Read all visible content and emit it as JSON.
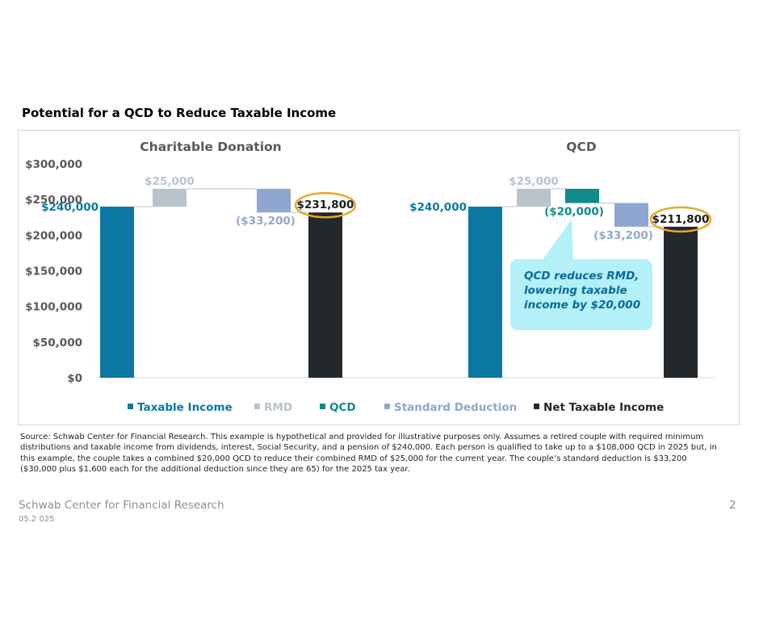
{
  "page": {
    "heading": "Potential for a QCD to Reduce Taxable Income",
    "source": "Source: Schwab Center for Financial Research. This example is hypothetical and provided for illustrative purposes only. Assumes a retired couple with required minimum distributions and taxable income from dividends, interest, Social Security, and a pension of $240,000. Each person is qualified to take up to a $108,000 QCD in 2025 but, in this example, the couple takes a combined $20,000 QCD to reduce their combined RMD of $25,000 for the current year. The couple’s standard deduction is $33,200 ($30,000 plus $1,600 each for the additional deduction since they are 65) for the 2025 tax year.",
    "footer": {
      "org": "Schwab Center for Financial Research",
      "date": "05.2 025",
      "page_number": "2"
    }
  },
  "chart_data": {
    "type": "waterfall",
    "yrange": [
      0,
      300000
    ],
    "yticks": [
      {
        "value": 0,
        "label": "$0"
      },
      {
        "value": 50000,
        "label": "$50,000"
      },
      {
        "value": 100000,
        "label": "$100,000"
      },
      {
        "value": 150000,
        "label": "$150,000"
      },
      {
        "value": 200000,
        "label": "$200,000"
      },
      {
        "value": 250000,
        "label": "$250,000"
      },
      {
        "value": 300000,
        "label": "$300,000"
      }
    ],
    "colors": {
      "Taxable Income": "#0b78a3",
      "RMD": "#b8c3cb",
      "QCD": "#118a89",
      "Standard Deduction": "#8fa7d0",
      "Net Taxable Income": "#23282d"
    },
    "legend": [
      {
        "name": "Taxable Income",
        "label_color": "#0b78a3"
      },
      {
        "name": "RMD",
        "label_color": "#b8c3cb"
      },
      {
        "name": "QCD",
        "label_color": "#118a89"
      },
      {
        "name": "Standard Deduction",
        "label_color": "#8fa7d0"
      },
      {
        "name": "Net Taxable Income",
        "label_color": "#23282d"
      }
    ],
    "groups": [
      {
        "title": "Charitable Donation",
        "steps": [
          {
            "series": "Taxable Income",
            "kind": "total",
            "value": 240000,
            "label": "$240,000",
            "label_color": "#0b78a3",
            "label_pos": "left",
            "highlight": false
          },
          {
            "series": "RMD",
            "kind": "delta",
            "value": 25000,
            "label": "$25,000",
            "label_color": "#b8c3cb",
            "label_pos": "above",
            "highlight": false
          },
          {
            "series": "Standard Deduction",
            "kind": "delta",
            "value": -33200,
            "label": "($33,200)",
            "label_color": "#8fa7d0",
            "label_pos": "below",
            "highlight": false
          },
          {
            "series": "Net Taxable Income",
            "kind": "total",
            "value": 231800,
            "label": "$231,800",
            "label_color": "#1d1d1d",
            "label_pos": "above",
            "highlight": true
          }
        ]
      },
      {
        "title": "QCD",
        "steps": [
          {
            "series": "Taxable Income",
            "kind": "total",
            "value": 240000,
            "label": "$240,000",
            "label_color": "#0b78a3",
            "label_pos": "left",
            "highlight": false
          },
          {
            "series": "RMD",
            "kind": "delta",
            "value": 25000,
            "label": "$25,000",
            "label_color": "#b8c3cb",
            "label_pos": "above",
            "highlight": false
          },
          {
            "series": "QCD",
            "kind": "delta",
            "value": -20000,
            "label": "($20,000)",
            "label_color": "#118a89",
            "label_pos": "below",
            "highlight": false
          },
          {
            "series": "Standard Deduction",
            "kind": "delta",
            "value": -33200,
            "label": "($33,200)",
            "label_color": "#8fa7d0",
            "label_pos": "below",
            "highlight": false
          },
          {
            "series": "Net Taxable Income",
            "kind": "total",
            "value": 211800,
            "label": "$211,800",
            "label_color": "#1d1d1d",
            "label_pos": "above",
            "highlight": true
          }
        ]
      }
    ],
    "annotation": {
      "text": [
        "QCD reduces RMD,",
        "lowering taxable",
        "income by $20,000"
      ],
      "group": 1,
      "pointer_step": 2,
      "fill": "#b3f0f7",
      "text_color": "#0a6a9b"
    },
    "highlight_color": "#e8a828"
  }
}
